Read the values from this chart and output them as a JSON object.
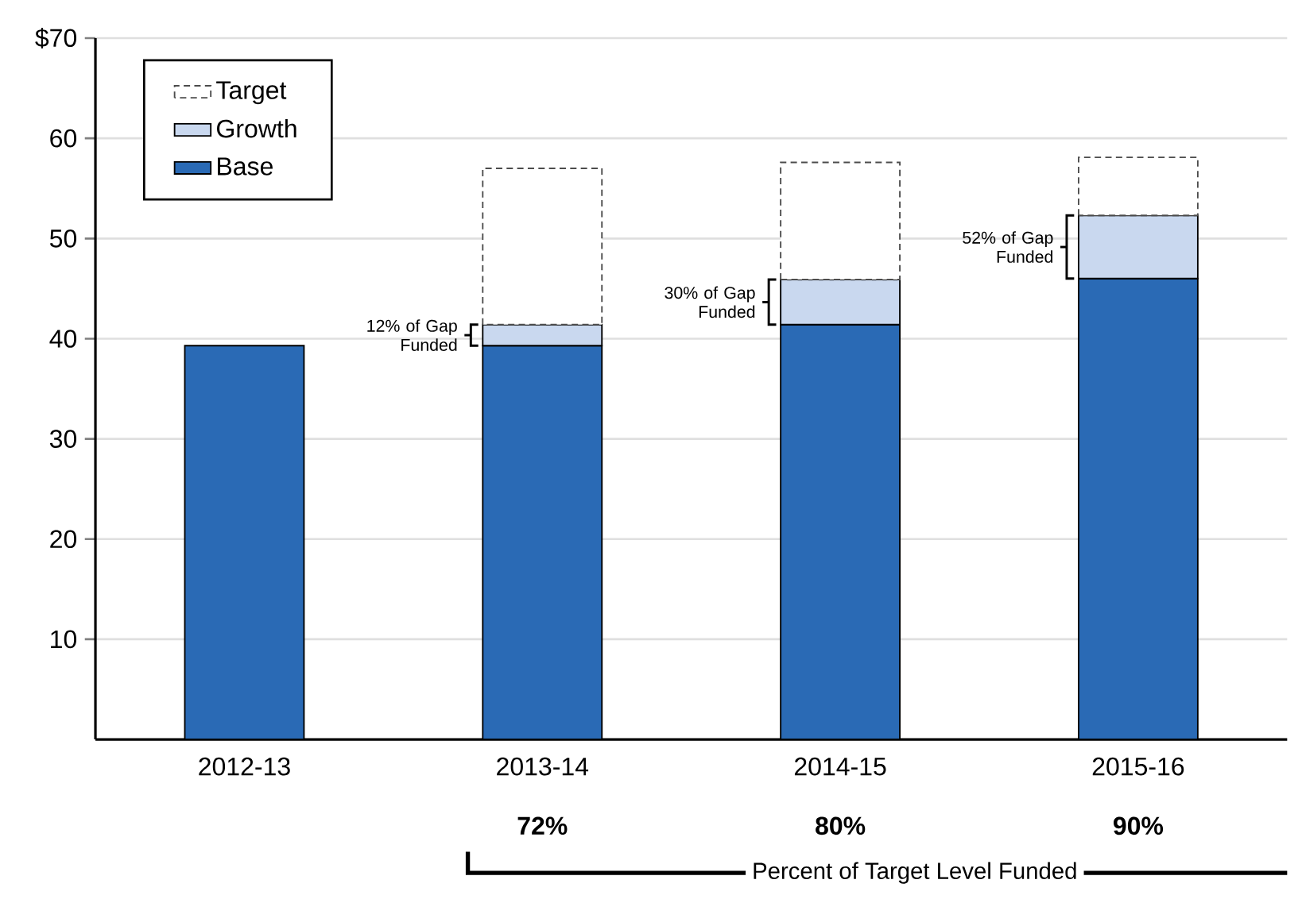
{
  "chart_data": {
    "type": "bar",
    "stacked": true,
    "categories": [
      "2012-13",
      "2013-14",
      "2014-15",
      "2015-16"
    ],
    "series": [
      {
        "name": "Base",
        "color": "#2a6ab5",
        "values": [
          39.3,
          39.3,
          41.4,
          46.0
        ]
      },
      {
        "name": "Growth",
        "color": "#c9d8ef",
        "values": [
          null,
          2.1,
          4.5,
          6.3
        ]
      },
      {
        "name": "Target",
        "color": "#ffffff",
        "line_style": "dashed",
        "values": [
          null,
          15.6,
          11.7,
          5.8
        ]
      }
    ],
    "ylim": [
      0,
      70
    ],
    "yticks": [
      10,
      20,
      30,
      40,
      50,
      60,
      {
        "value": 70,
        "label": "$70"
      }
    ],
    "grid": "y",
    "legend": "top left",
    "annotations": [
      "12% of Gap Funded",
      "30% of Gap Funded",
      "52% of Gap Funded",
      "72%",
      "80%",
      "90%",
      "Percent of Target Level Funded"
    ]
  }
}
